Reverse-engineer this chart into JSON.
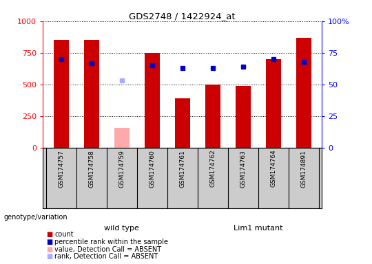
{
  "title": "GDS2748 / 1422924_at",
  "samples": [
    "GSM174757",
    "GSM174758",
    "GSM174759",
    "GSM174760",
    "GSM174761",
    "GSM174762",
    "GSM174763",
    "GSM174764",
    "GSM174891"
  ],
  "counts": [
    850,
    850,
    null,
    750,
    390,
    500,
    490,
    700,
    870
  ],
  "counts_absent": [
    null,
    null,
    160,
    null,
    null,
    null,
    null,
    null,
    null
  ],
  "percentile_ranks": [
    70,
    67,
    null,
    65,
    63,
    63,
    64,
    70,
    68
  ],
  "percentile_ranks_absent": [
    null,
    null,
    53,
    null,
    null,
    null,
    null,
    null,
    null
  ],
  "wild_type_indices": [
    0,
    1,
    2,
    3,
    4
  ],
  "lim1_mutant_indices": [
    5,
    6,
    7,
    8
  ],
  "bar_color": "#cc0000",
  "bar_absent_color": "#ffaaaa",
  "dot_color": "#0000cc",
  "dot_absent_color": "#aaaaff",
  "wild_type_color": "#99ff99",
  "lim1_mutant_color": "#66ff66",
  "group_label_bg": "#cccccc",
  "ylim_left": [
    0,
    1000
  ],
  "ylim_right": [
    0,
    100
  ],
  "yticks_left": [
    0,
    250,
    500,
    750,
    1000
  ],
  "yticks_right": [
    0,
    25,
    50,
    75,
    100
  ],
  "background_color": "#ffffff",
  "plot_bg": "#ffffff",
  "grid_color": "#000000",
  "bar_width": 0.5
}
